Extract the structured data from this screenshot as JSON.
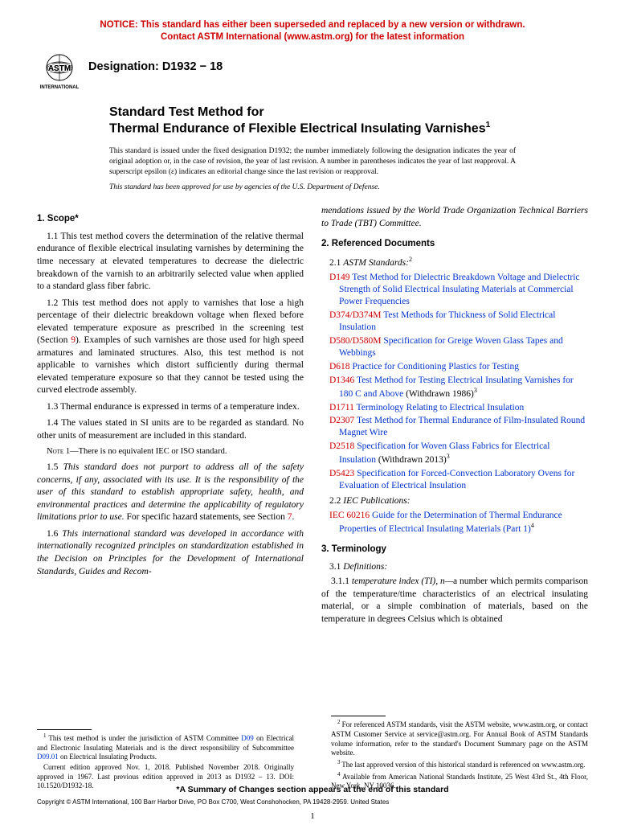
{
  "notice": {
    "line1": "NOTICE: This standard has either been superseded and replaced by a new version or withdrawn.",
    "line2": "Contact ASTM International (www.astm.org) for the latest information"
  },
  "logo_text": "INTERNATIONAL",
  "designation": "Designation: D1932 − 18",
  "title_line1": "Standard Test Method for",
  "title_line2": "Thermal Endurance of Flexible Electrical Insulating Varnishes",
  "title_sup": "1",
  "issuance": "This standard is issued under the fixed designation D1932; the number immediately following the designation indicates the year of original adoption or, in the case of revision, the year of last revision. A number in parentheses indicates the year of last reapproval. A superscript epsilon (ε) indicates an editorial change since the last revision or reapproval.",
  "approval_note": "This standard has been approved for use by agencies of the U.S. Department of Defense.",
  "section1": {
    "head": "1. Scope*",
    "p1_1": "1.1 This test method covers the determination of the relative thermal endurance of flexible electrical insulating varnishes by determining the time necessary at elevated temperatures to decrease the dielectric breakdown of the varnish to an arbitrarily selected value when applied to a standard glass fiber fabric.",
    "p1_2a": "1.2 This test method does not apply to varnishes that lose a high percentage of their dielectric breakdown voltage when flexed before elevated temperature exposure as prescribed in the screening test (Section ",
    "p1_2_ref": "9",
    "p1_2b": "). Examples of such varnishes are those used for high speed armatures and laminated structures. Also, this test method is not applicable to varnishes which distort sufficiently during thermal elevated temperature exposure so that they cannot be tested using the curved electrode assembly.",
    "p1_3": "1.3 Thermal endurance is expressed in terms of a temperature index.",
    "p1_4": "1.4 The values stated in SI units are to be regarded as standard. No other units of measurement are included in this standard.",
    "note1_label": "Note 1—",
    "note1_body": "There is no equivalent IEC or ISO standard.",
    "p1_5a": "1.5 ",
    "p1_5b": "This standard does not purport to address all of the safety concerns, if any, associated with its use. It is the responsibility of the user of this standard to establish appropriate safety, health, and environmental practices and determine the applicability of regulatory limitations prior to use.",
    "p1_5c": " For specific hazard statements, see Section ",
    "p1_5_ref": "7",
    "p1_5d": ".",
    "p1_6a": "1.6 ",
    "p1_6b": "This international standard was developed in accordance with internationally recognized principles on standardization established in the Decision on Principles for the Development of International Standards, Guides and Recom-",
    "p1_6c": "mendations issued by the World Trade Organization Technical Barriers to Trade (TBT) Committee."
  },
  "section2": {
    "head": "2. Referenced Documents",
    "sub1a": "2.1 ",
    "sub1b": "ASTM Standards:",
    "sub1_sup": "2",
    "refs": [
      {
        "code": "D149",
        "title": " Test Method for Dielectric Breakdown Voltage and Dielectric Strength of Solid Electrical Insulating Materials at Commercial Power Frequencies",
        "suffix": ""
      },
      {
        "code": "D374/D374M",
        "title": " Test Methods for Thickness of Solid Electrical Insulation",
        "suffix": ""
      },
      {
        "code": "D580/D580M",
        "title": " Specification for Greige Woven Glass Tapes and Webbings",
        "suffix": ""
      },
      {
        "code": "D618",
        "title": " Practice for Conditioning Plastics for Testing",
        "suffix": ""
      },
      {
        "code": "D1346",
        "title": " Test Method for Testing Electrical Insulating Varnishes for 180 C and Above",
        "suffix": " (Withdrawn 1986)",
        "sup": "3"
      },
      {
        "code": "D1711",
        "title": " Terminology Relating to Electrical Insulation",
        "suffix": ""
      },
      {
        "code": "D2307",
        "title": " Test Method for Thermal Endurance of Film-Insulated Round Magnet Wire",
        "suffix": ""
      },
      {
        "code": "D2518",
        "title": " Specification for Woven Glass Fabrics for Electrical Insulation",
        "suffix": " (Withdrawn 2013)",
        "sup": "3"
      },
      {
        "code": "D5423",
        "title": " Specification for Forced-Convection Laboratory Ovens for Evaluation of Electrical Insulation",
        "suffix": ""
      }
    ],
    "sub2a": "2.2 ",
    "sub2b": "IEC Publications:",
    "iec_code": "IEC 60216",
    "iec_title": " Guide for the Determination of Thermal Endurance Properties of Electrical Insulating Materials (Part 1)",
    "iec_sup": "4"
  },
  "section3": {
    "head": "3. Terminology",
    "sub1": "3.1 ",
    "sub1b": "Definitions:",
    "p3_1_1_a": "3.1.1 ",
    "p3_1_1_term": "temperature index (TI), n—",
    "p3_1_1_b": "a number which permits comparison of the temperature/time characteristics of an electrical insulating material, or a simple combination of materials, based on the temperature in degrees Celsius which is obtained"
  },
  "footnotes_left": {
    "f1a": "This test method is under the jurisdiction of ASTM Committee ",
    "f1_link1": "D09",
    "f1b": " on Electrical and Electronic Insulating Materials and is the direct responsibility of Subcommittee ",
    "f1_link2": "D09.01",
    "f1c": " on Electrical Insulating Products.",
    "f1d": "Current edition approved Nov. 1, 2018. Published November 2018. Originally approved in 1967. Last previous edition approved in 2013 as D1932 – 13. DOI: 10.1520/D1932-18."
  },
  "footnotes_right": {
    "f2": "For referenced ASTM standards, visit the ASTM website, www.astm.org, or contact ASTM Customer Service at service@astm.org. For Annual Book of ASTM Standards volume information, refer to the standard's Document Summary page on the ASTM website.",
    "f3": "The last approved version of this historical standard is referenced on www.astm.org.",
    "f4": "Available from American National Standards Institute, 25 West 43rd St., 4th Floor, New York, NY 10036."
  },
  "changes_line": "*A Summary of Changes section appears at the end of this standard",
  "copyright": "Copyright © ASTM International, 100 Barr Harbor Drive, PO Box C700, West Conshohocken, PA 19428-2959. United States",
  "page_num": "1"
}
